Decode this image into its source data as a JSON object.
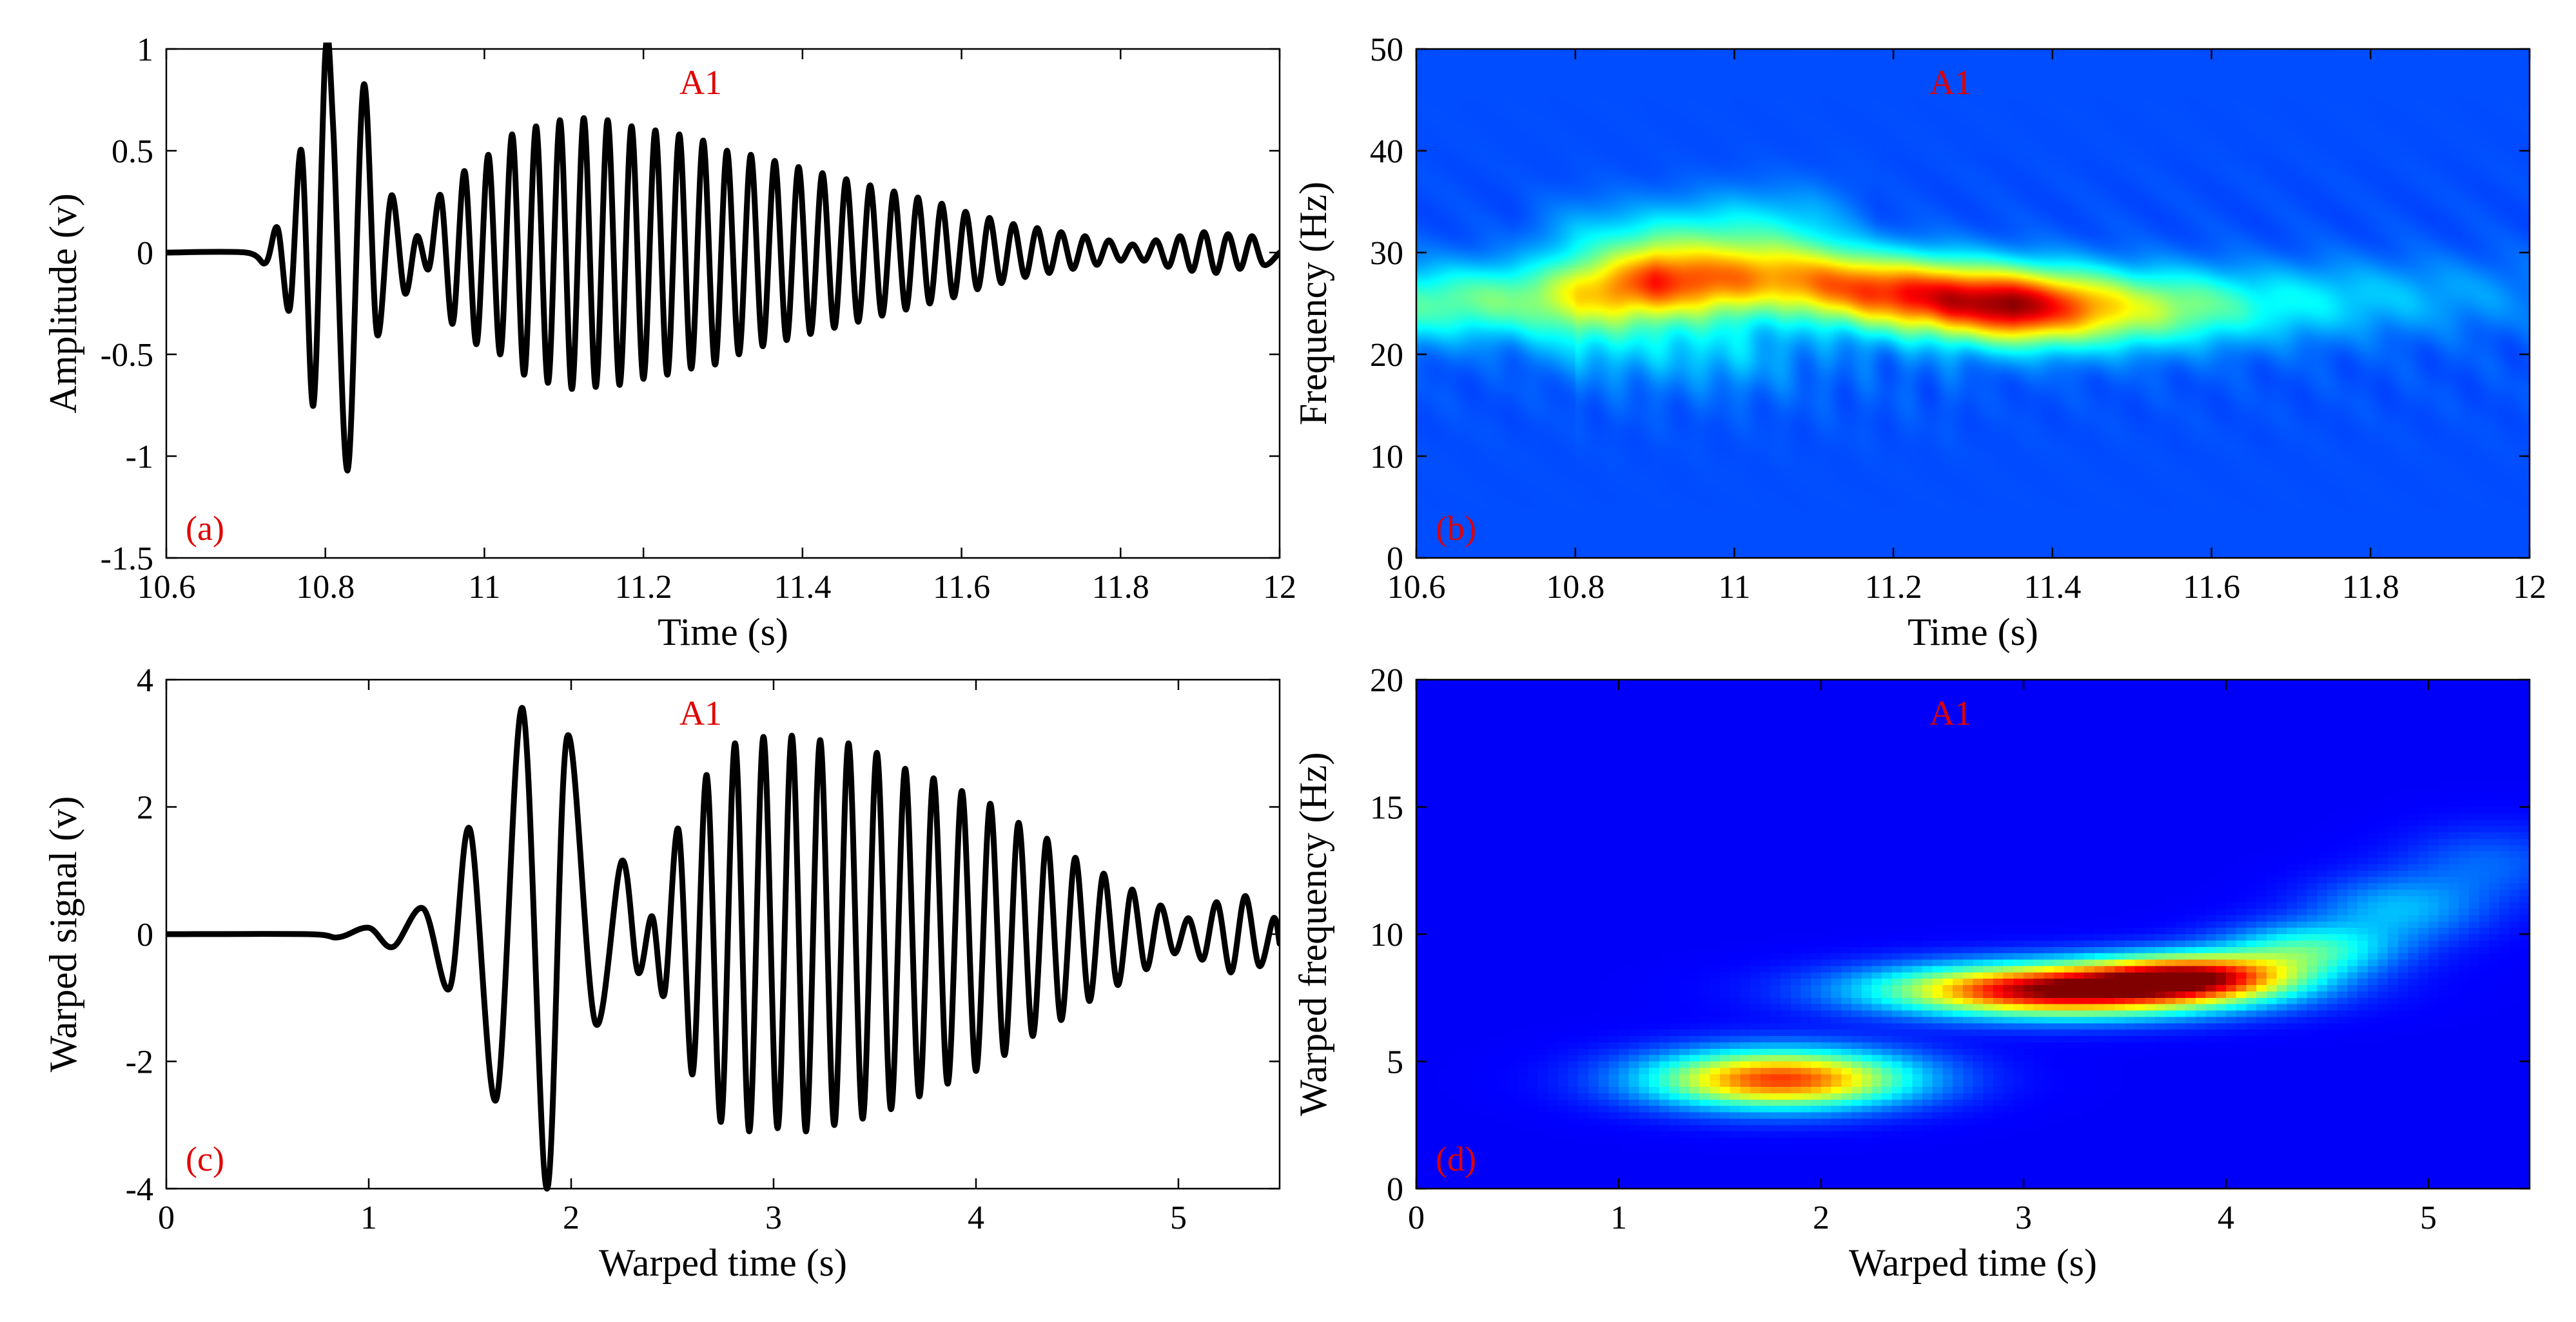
{
  "chart_data": [
    {
      "id": "a",
      "type": "line",
      "panel_label": "(a)",
      "annotation": "A1",
      "xlabel": "Time (s)",
      "ylabel": "Amplitude (v)",
      "xlim": [
        10.6,
        12
      ],
      "ylim": [
        -1.5,
        1
      ],
      "xticks": [
        10.6,
        10.8,
        11,
        11.2,
        11.4,
        11.6,
        11.8,
        12
      ],
      "xtick_labels": [
        "10.6",
        "10.8",
        "11",
        "11.2",
        "11.4",
        "11.6",
        "11.8",
        "12"
      ],
      "yticks": [
        -1.5,
        -1,
        -0.5,
        0,
        0.5,
        1
      ],
      "ytick_labels": [
        "-1.5",
        "-1",
        "-0.5",
        "0",
        "0.5",
        "1"
      ],
      "series": [
        {
          "name": "A1 signal",
          "x": [
            10.6,
            10.7,
            10.725,
            10.74,
            10.755,
            10.77,
            10.785,
            10.8,
            10.81,
            10.828,
            10.848,
            10.865,
            10.883,
            10.9,
            10.915,
            10.93,
            10.945,
            10.96,
            10.975,
            10.99,
            11.005,
            11.02,
            11.035,
            11.05,
            11.065,
            11.08,
            11.095,
            11.11,
            11.125,
            11.14,
            11.155,
            11.17,
            11.185,
            11.2,
            11.215,
            11.23,
            11.245,
            11.26,
            11.275,
            11.29,
            11.305,
            11.32,
            11.335,
            11.35,
            11.365,
            11.38,
            11.395,
            11.41,
            11.425,
            11.44,
            11.455,
            11.47,
            11.485,
            11.5,
            11.515,
            11.53,
            11.545,
            11.56,
            11.575,
            11.59,
            11.605,
            11.62,
            11.635,
            11.65,
            11.665,
            11.68,
            11.695,
            11.71,
            11.725,
            11.74,
            11.755,
            11.77,
            11.785,
            11.8,
            11.815,
            11.83,
            11.845,
            11.86,
            11.875,
            11.89,
            11.905,
            11.92,
            11.935,
            11.95,
            11.965,
            11.98,
            12
          ],
          "y": [
            0,
            0,
            -0.05,
            0.12,
            -0.28,
            0.5,
            -0.75,
            0.98,
            0.6,
            -1.07,
            0.82,
            -0.4,
            0.28,
            -0.2,
            0.08,
            -0.08,
            0.28,
            -0.35,
            0.4,
            -0.45,
            0.48,
            -0.5,
            0.58,
            -0.6,
            0.62,
            -0.64,
            0.65,
            -0.67,
            0.66,
            -0.66,
            0.65,
            -0.65,
            0.62,
            -0.62,
            0.6,
            -0.6,
            0.58,
            -0.57,
            0.55,
            -0.55,
            0.5,
            -0.5,
            0.48,
            -0.46,
            0.45,
            -0.43,
            0.42,
            -0.4,
            0.39,
            -0.37,
            0.36,
            -0.34,
            0.33,
            -0.31,
            0.3,
            -0.28,
            0.27,
            -0.25,
            0.24,
            -0.22,
            0.2,
            -0.18,
            0.17,
            -0.15,
            0.14,
            -0.12,
            0.12,
            -0.1,
            0.1,
            -0.08,
            0.08,
            -0.06,
            0.06,
            -0.04,
            0.04,
            -0.04,
            0.06,
            -0.07,
            0.08,
            -0.09,
            0.1,
            -0.1,
            0.09,
            -0.08,
            0.08,
            -0.06,
            0
          ]
        }
      ]
    },
    {
      "id": "b",
      "type": "heatmap",
      "panel_label": "(b)",
      "annotation": "A1",
      "xlabel": "Time (s)",
      "ylabel": "Frequency (Hz)",
      "xlim": [
        10.6,
        12
      ],
      "ylim": [
        0,
        50
      ],
      "xticks": [
        10.6,
        10.8,
        11,
        11.2,
        11.4,
        11.6,
        11.8,
        12
      ],
      "xtick_labels": [
        "10.6",
        "10.8",
        "11",
        "11.2",
        "11.4",
        "11.6",
        "11.8",
        "12"
      ],
      "yticks": [
        0,
        10,
        20,
        30,
        40,
        50
      ],
      "ytick_labels": [
        "0",
        "10",
        "20",
        "30",
        "40",
        "50"
      ],
      "colormap": "jet",
      "ridges": [
        {
          "x": [
            10.6,
            10.75,
            10.9,
            11.05,
            11.2,
            11.35,
            11.5,
            11.65,
            11.8,
            12
          ],
          "y": [
            25,
            25.5,
            27,
            27.5,
            26,
            24.8,
            24.5,
            24.8,
            25.5,
            26
          ],
          "peak": [
            0.45,
            0.5,
            0.8,
            0.7,
            0.85,
            1.0,
            0.6,
            0.4,
            0.32,
            0.25
          ]
        },
        {
          "x": [
            10.8,
            10.9,
            11.0,
            11.1
          ],
          "y": [
            31.5,
            31.5,
            32.5,
            33
          ],
          "peak": [
            0.3,
            0.35,
            0.35,
            0.3
          ]
        },
        {
          "x": [
            10.8,
            10.9,
            11.0,
            11.1
          ],
          "y": [
            21.5,
            21,
            20.5,
            20
          ],
          "peak": [
            0.3,
            0.3,
            0.3,
            0.22
          ]
        }
      ]
    },
    {
      "id": "c",
      "type": "line",
      "panel_label": "(c)",
      "annotation": "A1",
      "xlabel": "Warped time (s)",
      "ylabel": "Warped signal (v)",
      "xlim": [
        0,
        5.5
      ],
      "ylim": [
        -4,
        4
      ],
      "xticks": [
        0,
        1,
        2,
        3,
        4,
        5
      ],
      "xtick_labels": [
        "0",
        "1",
        "2",
        "3",
        "4",
        "5"
      ],
      "yticks": [
        -4,
        -2,
        0,
        2,
        4
      ],
      "ytick_labels": [
        "-4",
        "-2",
        "0",
        "2",
        "4"
      ],
      "series": [
        {
          "name": "Warped A1 signal",
          "x": [
            0,
            0.7,
            0.85,
            1.0,
            1.12,
            1.27,
            1.4,
            1.5,
            1.63,
            1.76,
            1.88,
            1.98,
            2.12,
            2.25,
            2.33,
            2.4,
            2.46,
            2.53,
            2.6,
            2.67,
            2.74,
            2.81,
            2.88,
            2.95,
            3.02,
            3.09,
            3.16,
            3.23,
            3.3,
            3.37,
            3.44,
            3.51,
            3.58,
            3.65,
            3.72,
            3.79,
            3.86,
            3.93,
            4.0,
            4.07,
            4.14,
            4.21,
            4.28,
            4.35,
            4.42,
            4.49,
            4.56,
            4.63,
            4.7,
            4.77,
            4.84,
            4.91,
            4.98,
            5.05,
            5.12,
            5.19,
            5.26,
            5.33,
            5.4,
            5.47,
            5.5
          ],
          "y": [
            0,
            0,
            -0.05,
            0.1,
            -0.2,
            0.4,
            -0.85,
            1.65,
            -2.6,
            3.55,
            -4.0,
            3.1,
            -1.4,
            1.15,
            -0.6,
            0.28,
            -0.95,
            1.65,
            -2.2,
            2.5,
            -2.95,
            3.0,
            -3.1,
            3.1,
            -3.05,
            3.12,
            -3.1,
            3.05,
            -3.0,
            3.0,
            -2.9,
            2.85,
            -2.75,
            2.6,
            -2.55,
            2.45,
            -2.35,
            2.25,
            -2.15,
            2.05,
            -1.9,
            1.75,
            -1.6,
            1.5,
            -1.35,
            1.2,
            -1.05,
            0.95,
            -0.8,
            0.7,
            -0.55,
            0.45,
            -0.3,
            0.25,
            -0.4,
            0.5,
            -0.6,
            0.6,
            -0.5,
            0.25,
            -0.15
          ]
        }
      ]
    },
    {
      "id": "d",
      "type": "heatmap",
      "panel_label": "(d)",
      "annotation": "A1",
      "xlabel": "Warped time (s)",
      "ylabel": "Warped frequency (Hz)",
      "xlim": [
        0,
        5.5
      ],
      "ylim": [
        0,
        20
      ],
      "xticks": [
        0,
        1,
        2,
        3,
        4,
        5
      ],
      "xtick_labels": [
        "0",
        "1",
        "2",
        "3",
        "4",
        "5"
      ],
      "yticks": [
        0,
        5,
        10,
        15,
        20
      ],
      "ytick_labels": [
        "0",
        "5",
        "10",
        "15",
        "20"
      ],
      "colormap": "jet",
      "blobs": [
        {
          "cx": 1.8,
          "cy": 4.3,
          "sx": 0.45,
          "sy": 0.8,
          "peak": 0.82
        },
        {
          "cx": 3.2,
          "cy": 7.8,
          "sx": 0.6,
          "sy": 0.7,
          "peak": 1.0
        },
        {
          "cx": 3.85,
          "cy": 8.4,
          "sx": 0.35,
          "sy": 0.6,
          "peak": 0.7
        },
        {
          "cx": 4.4,
          "cy": 9.4,
          "sx": 0.3,
          "sy": 0.7,
          "peak": 0.42
        },
        {
          "cx": 4.85,
          "cy": 11.0,
          "sx": 0.3,
          "sy": 0.9,
          "peak": 0.3
        },
        {
          "cx": 5.3,
          "cy": 12.8,
          "sx": 0.3,
          "sy": 1.0,
          "peak": 0.22
        }
      ]
    }
  ]
}
